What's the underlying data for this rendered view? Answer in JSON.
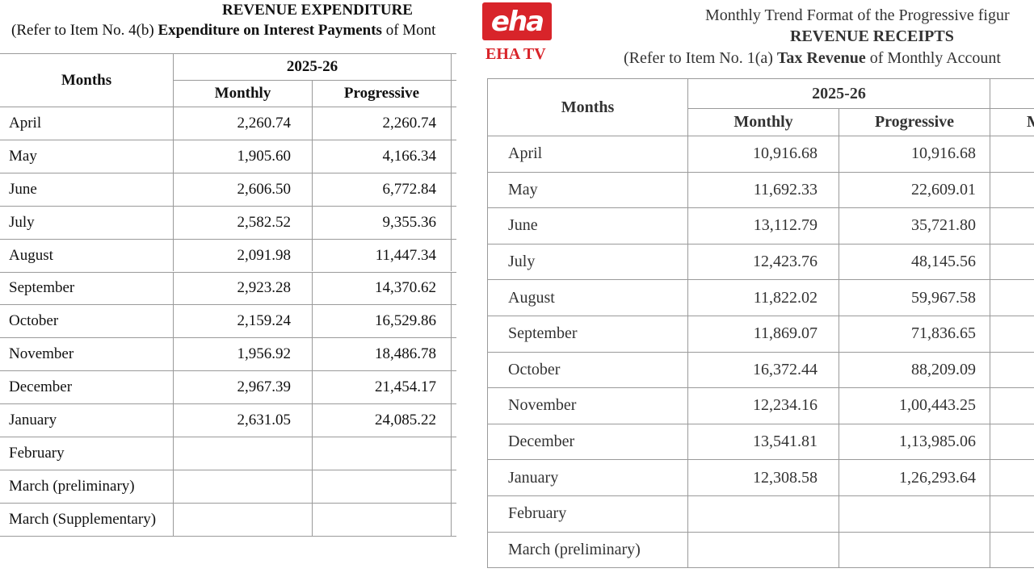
{
  "left": {
    "title": "REVENUE EXPENDITURE",
    "subtitle_prefix": "(Refer to Item No. 4(b)",
    "subtitle_bold": "Expenditure on Interest Payments",
    "subtitle_suffix": "of Mont",
    "table": {
      "header": {
        "months": "Months",
        "year": "2025-26",
        "monthly": "Monthly",
        "progressive": "Progressive"
      },
      "rows": [
        [
          "April",
          "2,260.74",
          "2,260.74"
        ],
        [
          "May",
          "1,905.60",
          "4,166.34"
        ],
        [
          "June",
          "2,606.50",
          "6,772.84"
        ],
        [
          "July",
          "2,582.52",
          "9,355.36"
        ],
        [
          "August",
          "2,091.98",
          "11,447.34"
        ],
        [
          "September",
          "2,923.28",
          "14,370.62"
        ],
        [
          "October",
          "2,159.24",
          "16,529.86"
        ],
        [
          "November",
          "1,956.92",
          "18,486.78"
        ],
        [
          "December",
          "2,967.39",
          "21,454.17"
        ],
        [
          "January",
          "2,631.05",
          "24,085.22"
        ],
        [
          "February"
        ],
        [
          "March (preliminary)"
        ],
        [
          "March (Supplementary)"
        ]
      ]
    }
  },
  "right": {
    "logo": {
      "mark": "eha",
      "name": "EHA TV"
    },
    "heading": "Monthly Trend Format of the Progressive figur",
    "title": "REVENUE RECEIPTS",
    "subtitle_prefix": "(Refer to Item No. 1(a)",
    "subtitle_bold": "Tax Revenue",
    "subtitle_suffix": "of Monthly Account",
    "table": {
      "header": {
        "months": "Months",
        "year": "2025-26",
        "monthly": "Monthly",
        "progressive": "Progressive",
        "next": "M"
      },
      "rows": [
        [
          "April",
          "10,916.68",
          "10,916.68"
        ],
        [
          "May",
          "11,692.33",
          "22,609.01"
        ],
        [
          "June",
          "13,112.79",
          "35,721.80"
        ],
        [
          "July",
          "12,423.76",
          "48,145.56"
        ],
        [
          "August",
          "11,822.02",
          "59,967.58"
        ],
        [
          "September",
          "11,869.07",
          "71,836.65"
        ],
        [
          "October",
          "16,372.44",
          "88,209.09"
        ],
        [
          "November",
          "12,234.16",
          "1,00,443.25"
        ],
        [
          "December",
          "13,541.81",
          "1,13,985.06"
        ],
        [
          "January",
          "12,308.58",
          "1,26,293.64"
        ],
        [
          "February"
        ],
        [
          "March (preliminary)"
        ]
      ]
    }
  }
}
